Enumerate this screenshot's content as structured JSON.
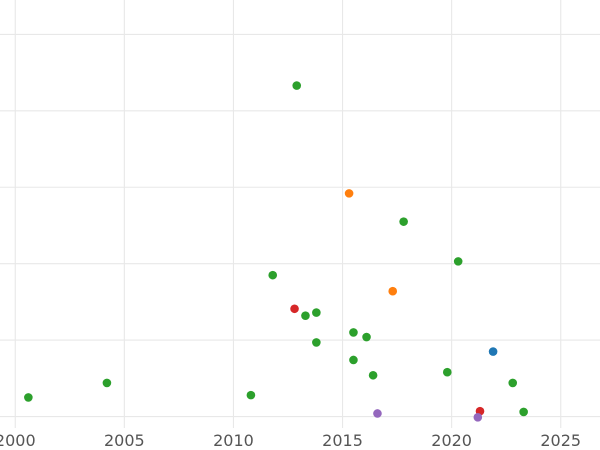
{
  "chart_data": {
    "type": "scatter",
    "title": "",
    "xlabel": "",
    "ylabel": "",
    "xlim": [
      1999.3,
      2026.8
    ],
    "ylim": [
      -0.15,
      5.45
    ],
    "x_ticks": [
      2000,
      2005,
      2010,
      2015,
      2020,
      2025
    ],
    "x_tick_labels": [
      "2000",
      "2005",
      "2010",
      "2015",
      "2020",
      "2025"
    ],
    "y_gridlines": [
      0,
      1,
      2,
      3,
      4,
      5
    ],
    "grid": true,
    "legend": "none",
    "series": [
      {
        "color": "#2ca02c",
        "points": [
          {
            "x": 2000.6,
            "y": 0.25
          },
          {
            "x": 2004.2,
            "y": 0.44
          },
          {
            "x": 2010.8,
            "y": 0.28
          },
          {
            "x": 2011.8,
            "y": 1.85
          },
          {
            "x": 2012.9,
            "y": 4.33
          },
          {
            "x": 2013.3,
            "y": 1.32
          },
          {
            "x": 2013.8,
            "y": 1.36
          },
          {
            "x": 2013.8,
            "y": 0.97
          },
          {
            "x": 2015.5,
            "y": 1.1
          },
          {
            "x": 2015.5,
            "y": 0.74
          },
          {
            "x": 2016.1,
            "y": 1.04
          },
          {
            "x": 2016.4,
            "y": 0.54
          },
          {
            "x": 2017.8,
            "y": 2.55
          },
          {
            "x": 2019.8,
            "y": 0.58
          },
          {
            "x": 2020.3,
            "y": 2.03
          },
          {
            "x": 2022.8,
            "y": 0.44
          },
          {
            "x": 2023.3,
            "y": 0.06
          }
        ]
      },
      {
        "color": "#ff7f0e",
        "points": [
          {
            "x": 2015.3,
            "y": 2.92
          },
          {
            "x": 2017.3,
            "y": 1.64
          }
        ]
      },
      {
        "color": "#d62728",
        "points": [
          {
            "x": 2012.8,
            "y": 1.41
          },
          {
            "x": 2021.3,
            "y": 0.07
          }
        ]
      },
      {
        "color": "#1f77b4",
        "points": [
          {
            "x": 2021.9,
            "y": 0.85
          }
        ]
      },
      {
        "color": "#9467bd",
        "points": [
          {
            "x": 2016.6,
            "y": 0.04
          },
          {
            "x": 2021.2,
            "y": -0.01
          }
        ]
      }
    ]
  }
}
